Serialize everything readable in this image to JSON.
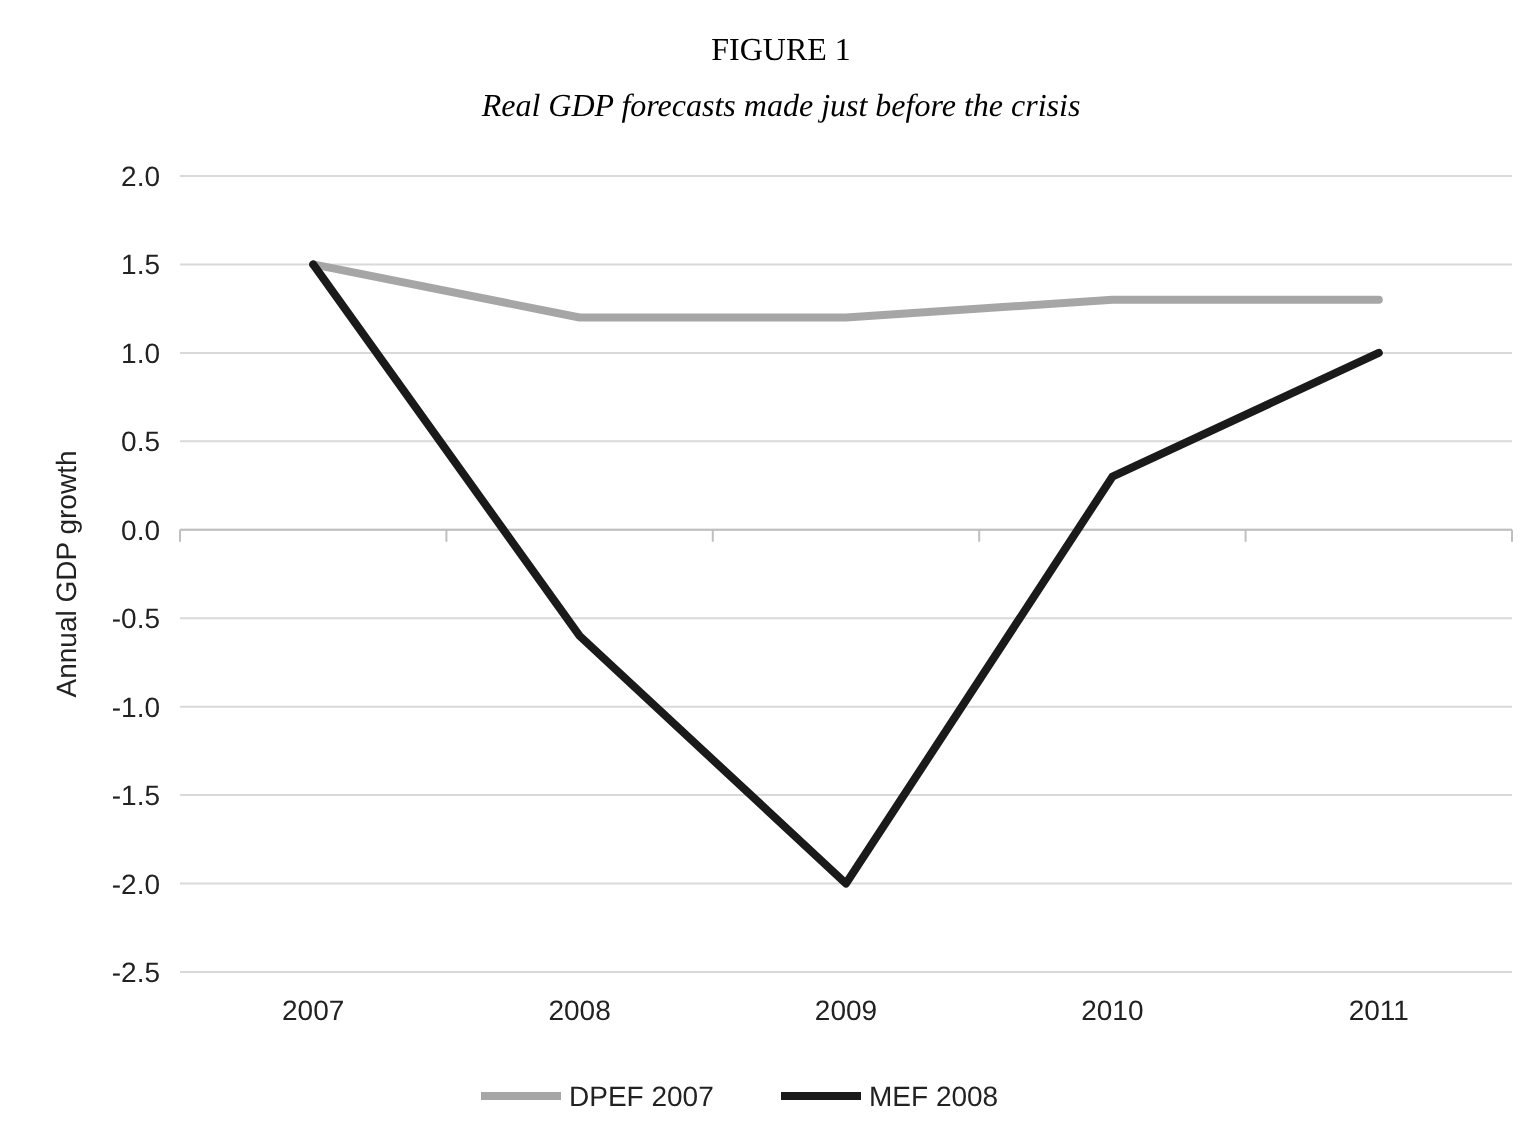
{
  "chart_data": {
    "type": "line",
    "title": "FIGURE 1",
    "subtitle": "Real GDP forecasts made just before the crisis",
    "ylabel": "Annual GDP growth",
    "categories": [
      "2007",
      "2008",
      "2009",
      "2010",
      "2011"
    ],
    "series": [
      {
        "name": "DPEF 2007",
        "color": "#a6a6a6",
        "values": [
          1.5,
          1.2,
          1.2,
          1.3,
          1.3
        ]
      },
      {
        "name": "MEF 2008",
        "color": "#1a1a1a",
        "values": [
          1.5,
          -0.6,
          -2.0,
          0.3,
          1.0
        ]
      }
    ],
    "ylim": [
      -2.5,
      2.0
    ],
    "yticks": [
      {
        "value": -2.5,
        "label": "-2.5"
      },
      {
        "value": -2,
        "label": "-2.0"
      },
      {
        "value": -1.5,
        "label": "-1.5"
      },
      {
        "value": -1,
        "label": "-1.0"
      },
      {
        "value": -0.5,
        "label": "-0.5"
      },
      {
        "value": 0,
        "label": "0.0"
      },
      {
        "value": 0.5,
        "label": "0.5"
      },
      {
        "value": 1,
        "label": "1.0"
      },
      {
        "value": 1.5,
        "label": "1.5"
      },
      {
        "value": 2,
        "label": "2.0"
      }
    ],
    "grid": "y",
    "legend": "bottom",
    "marker": "none",
    "line_style": "solid"
  }
}
